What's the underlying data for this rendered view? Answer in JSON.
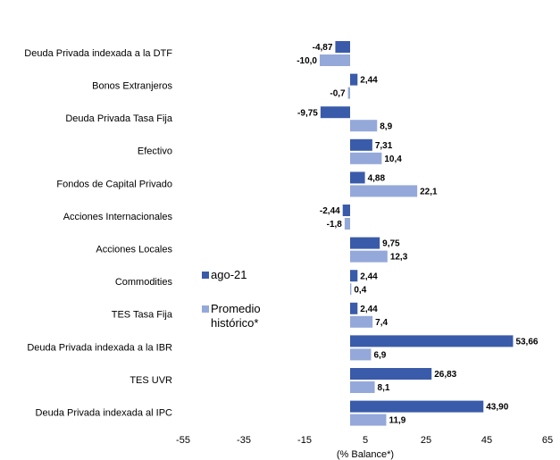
{
  "chart_data": {
    "type": "hbar",
    "categories": [
      "Deuda Privada indexada a la DTF",
      "Bonos Extranjeros",
      "Deuda Privada Tasa Fija",
      "Efectivo",
      "Fondos de Capital Privado",
      "Acciones Internacionales",
      "Acciones Locales",
      "Commodities",
      "TES Tasa Fija",
      "Deuda Privada indexada a la IBR",
      "TES UVR",
      "Deuda Privada indexada al IPC"
    ],
    "series": [
      {
        "name": "ago-21",
        "color": "#3a5ba9",
        "values": [
          -4.87,
          2.44,
          -9.75,
          7.31,
          4.88,
          -2.44,
          9.75,
          2.44,
          2.44,
          53.66,
          26.83,
          43.9
        ],
        "value_labels": [
          "-4,87",
          "2,44",
          "-9,75",
          "7,31",
          "4,88",
          "-2,44",
          "9,75",
          "2,44",
          "2,44",
          "53,66",
          "26,83",
          "43,90"
        ]
      },
      {
        "name": "Promedio histórico*",
        "color": "#94a8d9",
        "values": [
          -10.0,
          -0.7,
          8.9,
          10.4,
          22.1,
          -1.8,
          12.3,
          0.4,
          7.4,
          6.9,
          8.1,
          11.9
        ],
        "value_labels": [
          "-10,0",
          "-0,7",
          "8,9",
          "10,4",
          "22,1",
          "-1,8",
          "12,3",
          "0,4",
          "7,4",
          "6,9",
          "8,1",
          "11,9"
        ]
      }
    ],
    "xlim": [
      -55,
      65
    ],
    "xticks": [
      -55,
      -35,
      -15,
      5,
      25,
      45,
      65
    ],
    "xlabel": "(% Balance*)",
    "grid": false
  }
}
